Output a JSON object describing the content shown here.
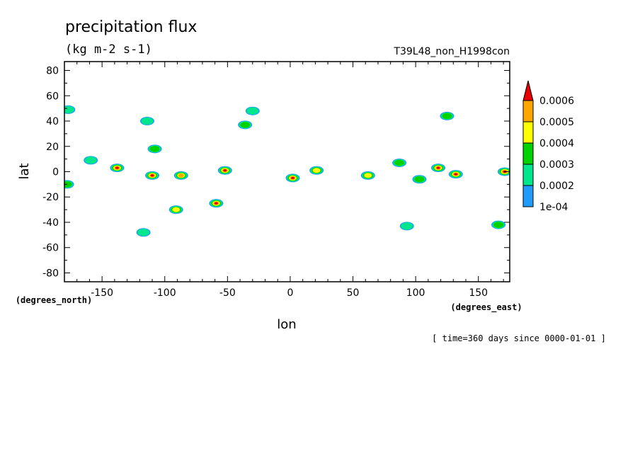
{
  "chart_data": {
    "type": "heatmap",
    "title": "precipitation flux",
    "units": "(kg m-2 s-1)",
    "experiment": "T39L48_non_H1998con",
    "xlabel": "lon",
    "ylabel": "lat",
    "x_units": "(degrees_east)",
    "y_units": "(degrees_north)",
    "time_label": "[ time=360 days since 0000-01-01 ]",
    "xlim": [
      -180,
      175
    ],
    "ylim": [
      -87,
      87
    ],
    "x_ticks": [
      -150,
      -100,
      -50,
      0,
      50,
      100,
      150
    ],
    "x_tick_labels": [
      "-150",
      "-100",
      "-50",
      "0",
      "50",
      "100",
      "150"
    ],
    "y_ticks": [
      80,
      60,
      40,
      20,
      0,
      -20,
      -40,
      -60,
      -80
    ],
    "y_tick_labels": [
      "80",
      "60",
      "40",
      "20",
      "0",
      "-20",
      "-40",
      "-60",
      "-80"
    ],
    "colorbar": {
      "levels": [
        0.0001,
        0.0002,
        0.0003,
        0.0004,
        0.0005,
        0.0006
      ],
      "labels": [
        "1e-04",
        "0.0002",
        "0.0003",
        "0.0004",
        "0.0005",
        "0.0006"
      ],
      "colors": [
        "#1e9bff",
        "#00e68c",
        "#00d200",
        "#ffff00",
        "#ffa500",
        "#e60000"
      ],
      "extend": "max"
    },
    "cells": [
      {
        "lon": -177,
        "lat": 49,
        "level": 2
      },
      {
        "lon": -159,
        "lat": 9,
        "level": 2
      },
      {
        "lon": -138,
        "lat": 3,
        "level": 6
      },
      {
        "lon": -114,
        "lat": 40,
        "level": 2
      },
      {
        "lon": -108,
        "lat": 18,
        "level": 3
      },
      {
        "lon": -110,
        "lat": -3,
        "level": 6
      },
      {
        "lon": -87,
        "lat": -3,
        "level": 5
      },
      {
        "lon": -91,
        "lat": -30,
        "level": 4
      },
      {
        "lon": -59,
        "lat": -25,
        "level": 6
      },
      {
        "lon": -52,
        "lat": 1,
        "level": 6
      },
      {
        "lon": -36,
        "lat": 37,
        "level": 3
      },
      {
        "lon": -30,
        "lat": 48,
        "level": 2
      },
      {
        "lon": 2,
        "lat": -5,
        "level": 6
      },
      {
        "lon": 21,
        "lat": 1,
        "level": 4
      },
      {
        "lon": 62,
        "lat": -3,
        "level": 4
      },
      {
        "lon": 87,
        "lat": 7,
        "level": 3
      },
      {
        "lon": 103,
        "lat": -6,
        "level": 3
      },
      {
        "lon": 118,
        "lat": 3,
        "level": 6
      },
      {
        "lon": 125,
        "lat": 44,
        "level": 3
      },
      {
        "lon": 132,
        "lat": -2,
        "level": 6
      },
      {
        "lon": 171,
        "lat": 0,
        "level": 6
      },
      {
        "lon": 166,
        "lat": -42,
        "level": 3
      },
      {
        "lon": -178,
        "lat": -10,
        "level": 3
      },
      {
        "lon": -117,
        "lat": -48,
        "level": 2
      },
      {
        "lon": 93,
        "lat": -43,
        "level": 2
      }
    ]
  }
}
